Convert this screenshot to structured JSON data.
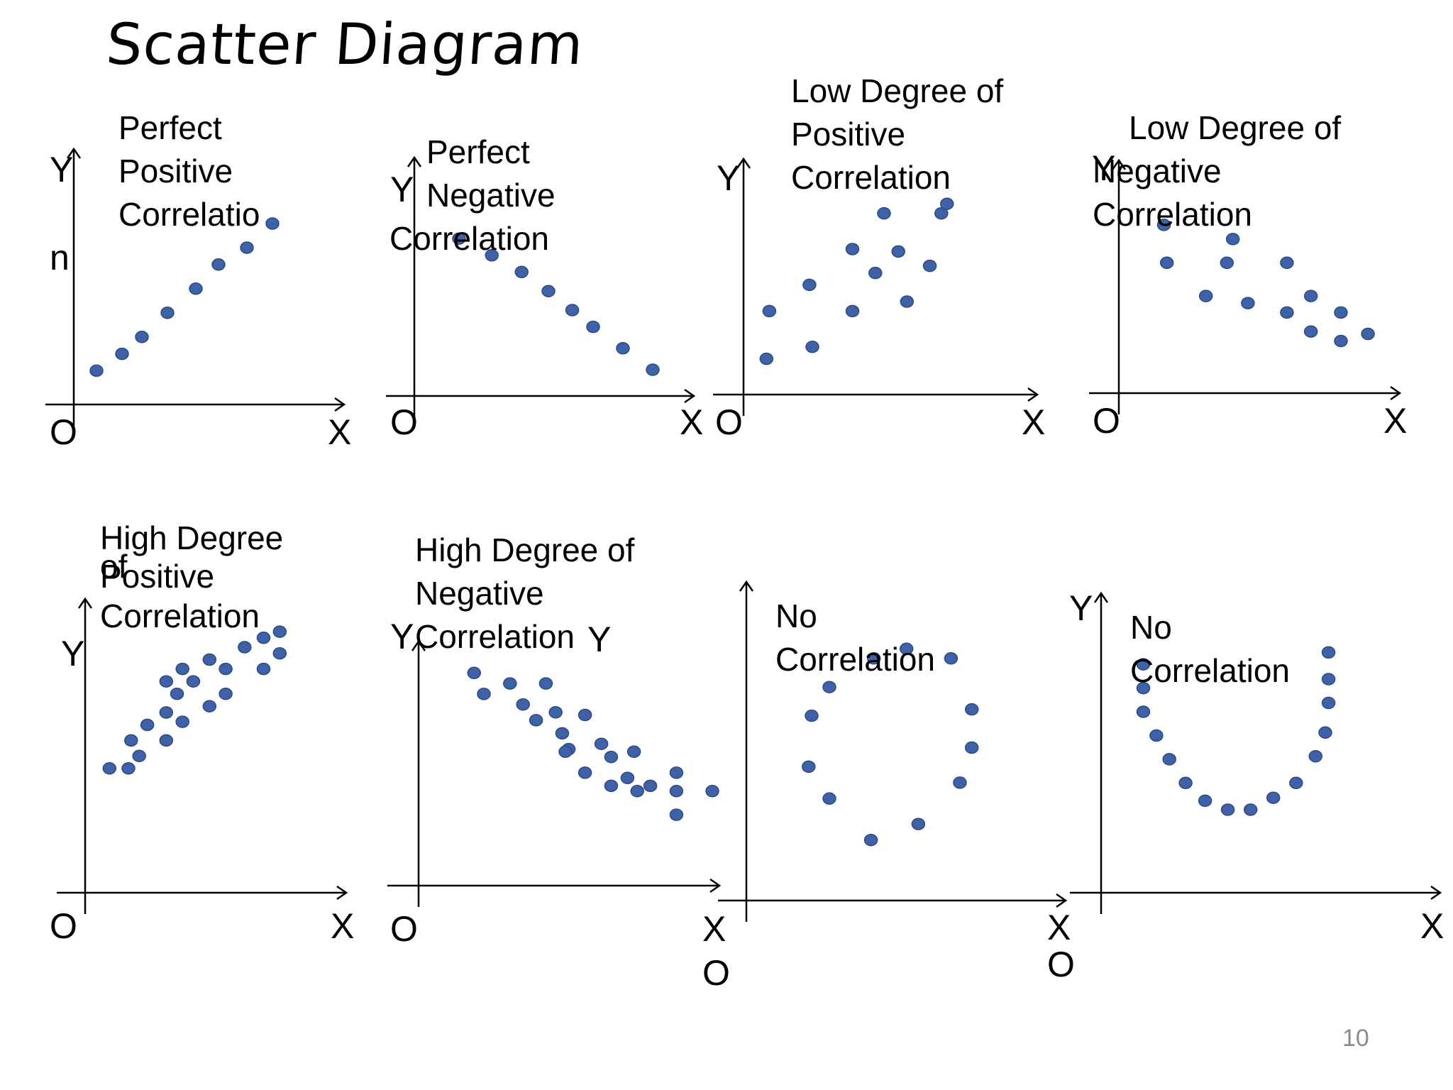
{
  "title": "Scatter Diagram",
  "page_number": "10",
  "colors": {
    "point": "#3f62a6",
    "point_edge": "#2c4a86",
    "axis": "#000000"
  },
  "chart_data": [
    {
      "type": "scatter",
      "title_lines": [
        "Perfect",
        "Positive",
        "Correlatio"
      ],
      "extra_label": "n",
      "xlabel": "X",
      "ylabel": "Y",
      "origin_label": "O",
      "xlim": [
        0,
        10
      ],
      "ylim": [
        0,
        10
      ],
      "points": [
        [
          0.8,
          1.4
        ],
        [
          1.7,
          2.1
        ],
        [
          2.4,
          2.8
        ],
        [
          3.3,
          3.8
        ],
        [
          4.3,
          4.8
        ],
        [
          5.1,
          5.8
        ],
        [
          6.1,
          6.5
        ],
        [
          7.0,
          7.5
        ]
      ]
    },
    {
      "type": "scatter",
      "title_lines": [
        "Perfect",
        "Negative",
        "Correlation"
      ],
      "xlabel": "X",
      "ylabel": "Y",
      "origin_label": "O",
      "xlim": [
        0,
        10
      ],
      "ylim": [
        0,
        10
      ],
      "points": [
        [
          1.5,
          6.6
        ],
        [
          2.6,
          5.9
        ],
        [
          3.6,
          5.2
        ],
        [
          4.5,
          4.4
        ],
        [
          5.3,
          3.6
        ],
        [
          6.0,
          2.9
        ],
        [
          7.0,
          2.0
        ],
        [
          8.0,
          1.1
        ]
      ]
    },
    {
      "type": "scatter",
      "title_lines": [
        "Low Degree of",
        "Positive",
        "Correlation"
      ],
      "xlabel": "X",
      "ylabel": "Y",
      "origin_label": "O",
      "xlim": [
        0,
        10
      ],
      "ylim": [
        0,
        10
      ],
      "points": [
        [
          0.8,
          1.5
        ],
        [
          0.9,
          3.5
        ],
        [
          2.4,
          2.0
        ],
        [
          2.3,
          4.6
        ],
        [
          3.8,
          3.5
        ],
        [
          3.8,
          6.1
        ],
        [
          4.6,
          5.1
        ],
        [
          4.9,
          7.6
        ],
        [
          5.4,
          6.0
        ],
        [
          5.7,
          3.9
        ],
        [
          6.5,
          5.4
        ],
        [
          6.9,
          7.6
        ],
        [
          7.1,
          8.0
        ]
      ]
    },
    {
      "type": "scatter",
      "title_lines": [
        "Low Degree of",
        "Negative",
        "Correlation"
      ],
      "xlabel": "X",
      "ylabel": "Y",
      "origin_label": "O",
      "xlim": [
        0,
        10
      ],
      "ylim": [
        0,
        10
      ],
      "points": [
        [
          1.5,
          7.1
        ],
        [
          1.6,
          5.5
        ],
        [
          2.9,
          4.1
        ],
        [
          3.8,
          6.5
        ],
        [
          3.6,
          5.5
        ],
        [
          4.3,
          3.8
        ],
        [
          5.6,
          5.5
        ],
        [
          5.6,
          3.4
        ],
        [
          6.4,
          4.1
        ],
        [
          6.4,
          2.6
        ],
        [
          7.4,
          3.4
        ],
        [
          7.4,
          2.2
        ],
        [
          8.3,
          2.5
        ]
      ]
    },
    {
      "type": "scatter",
      "title_lines": [
        "High Degree",
        "of",
        "Positive",
        "Correlation"
      ],
      "xlabel": "X",
      "ylabel": "Y",
      "origin_label": "O",
      "xlim": [
        0,
        10
      ],
      "ylim": [
        0,
        10
      ],
      "points": [
        [
          0.9,
          4.0
        ],
        [
          1.6,
          4.0
        ],
        [
          1.7,
          4.9
        ],
        [
          2.0,
          4.4
        ],
        [
          2.3,
          5.4
        ],
        [
          3.0,
          4.9
        ],
        [
          3.0,
          5.8
        ],
        [
          3.4,
          6.4
        ],
        [
          3.0,
          6.8
        ],
        [
          3.6,
          7.2
        ],
        [
          3.6,
          5.5
        ],
        [
          4.0,
          6.8
        ],
        [
          4.6,
          7.5
        ],
        [
          4.6,
          6.0
        ],
        [
          5.2,
          7.2
        ],
        [
          5.2,
          6.4
        ],
        [
          5.9,
          7.9
        ],
        [
          6.6,
          7.2
        ],
        [
          6.6,
          8.2
        ],
        [
          7.2,
          8.4
        ],
        [
          7.2,
          7.7
        ]
      ]
    },
    {
      "type": "scatter",
      "title_lines": [
        "High Degree of",
        "Negative",
        "Correlation"
      ],
      "xlabel": "X",
      "ylabel": "Y",
      "origin_label": "O",
      "xlim": [
        0,
        10
      ],
      "ylim": [
        0,
        10
      ],
      "points": [
        [
          1.7,
          8.1
        ],
        [
          2.0,
          7.3
        ],
        [
          2.8,
          7.7
        ],
        [
          3.2,
          6.9
        ],
        [
          3.9,
          7.7
        ],
        [
          3.6,
          6.3
        ],
        [
          4.2,
          6.6
        ],
        [
          4.4,
          5.8
        ],
        [
          4.6,
          5.2
        ],
        [
          4.5,
          5.1
        ],
        [
          5.1,
          6.5
        ],
        [
          5.1,
          4.3
        ],
        [
          5.6,
          5.4
        ],
        [
          5.9,
          4.9
        ],
        [
          5.9,
          3.8
        ],
        [
          6.4,
          4.1
        ],
        [
          6.6,
          5.1
        ],
        [
          6.7,
          3.6
        ],
        [
          7.1,
          3.8
        ],
        [
          7.9,
          4.3
        ],
        [
          7.9,
          3.6
        ],
        [
          7.9,
          2.7
        ],
        [
          9.0,
          3.6
        ]
      ]
    },
    {
      "type": "scatter",
      "title_lines": [
        "No",
        "Correlation"
      ],
      "xlabel": "X",
      "ylabel": "",
      "origin_label": "O",
      "xlim": [
        0,
        10
      ],
      "ylim": [
        0,
        10
      ],
      "points": [
        [
          4.3,
          7.6
        ],
        [
          5.4,
          7.9
        ],
        [
          6.9,
          7.6
        ],
        [
          2.8,
          6.7
        ],
        [
          2.2,
          5.8
        ],
        [
          7.6,
          6.0
        ],
        [
          2.1,
          4.2
        ],
        [
          7.6,
          4.8
        ],
        [
          7.2,
          3.7
        ],
        [
          2.8,
          3.2
        ],
        [
          4.2,
          1.9
        ],
        [
          5.8,
          2.4
        ]
      ]
    },
    {
      "type": "scatter",
      "title_lines": [
        "No",
        "Correlation"
      ],
      "xlabel": "X",
      "ylabel": "Y",
      "origin_label": "O",
      "xlim": [
        0,
        10
      ],
      "ylim": [
        0,
        10
      ],
      "points": [
        [
          1.3,
          7.7
        ],
        [
          1.3,
          6.9
        ],
        [
          1.3,
          6.1
        ],
        [
          1.7,
          5.3
        ],
        [
          2.1,
          4.5
        ],
        [
          2.6,
          3.7
        ],
        [
          3.2,
          3.1
        ],
        [
          3.9,
          2.8
        ],
        [
          4.6,
          2.8
        ],
        [
          5.3,
          3.2
        ],
        [
          6.0,
          3.7
        ],
        [
          6.6,
          4.6
        ],
        [
          6.9,
          5.4
        ],
        [
          7.0,
          6.4
        ],
        [
          7.0,
          7.2
        ],
        [
          7.0,
          8.1
        ]
      ]
    }
  ]
}
